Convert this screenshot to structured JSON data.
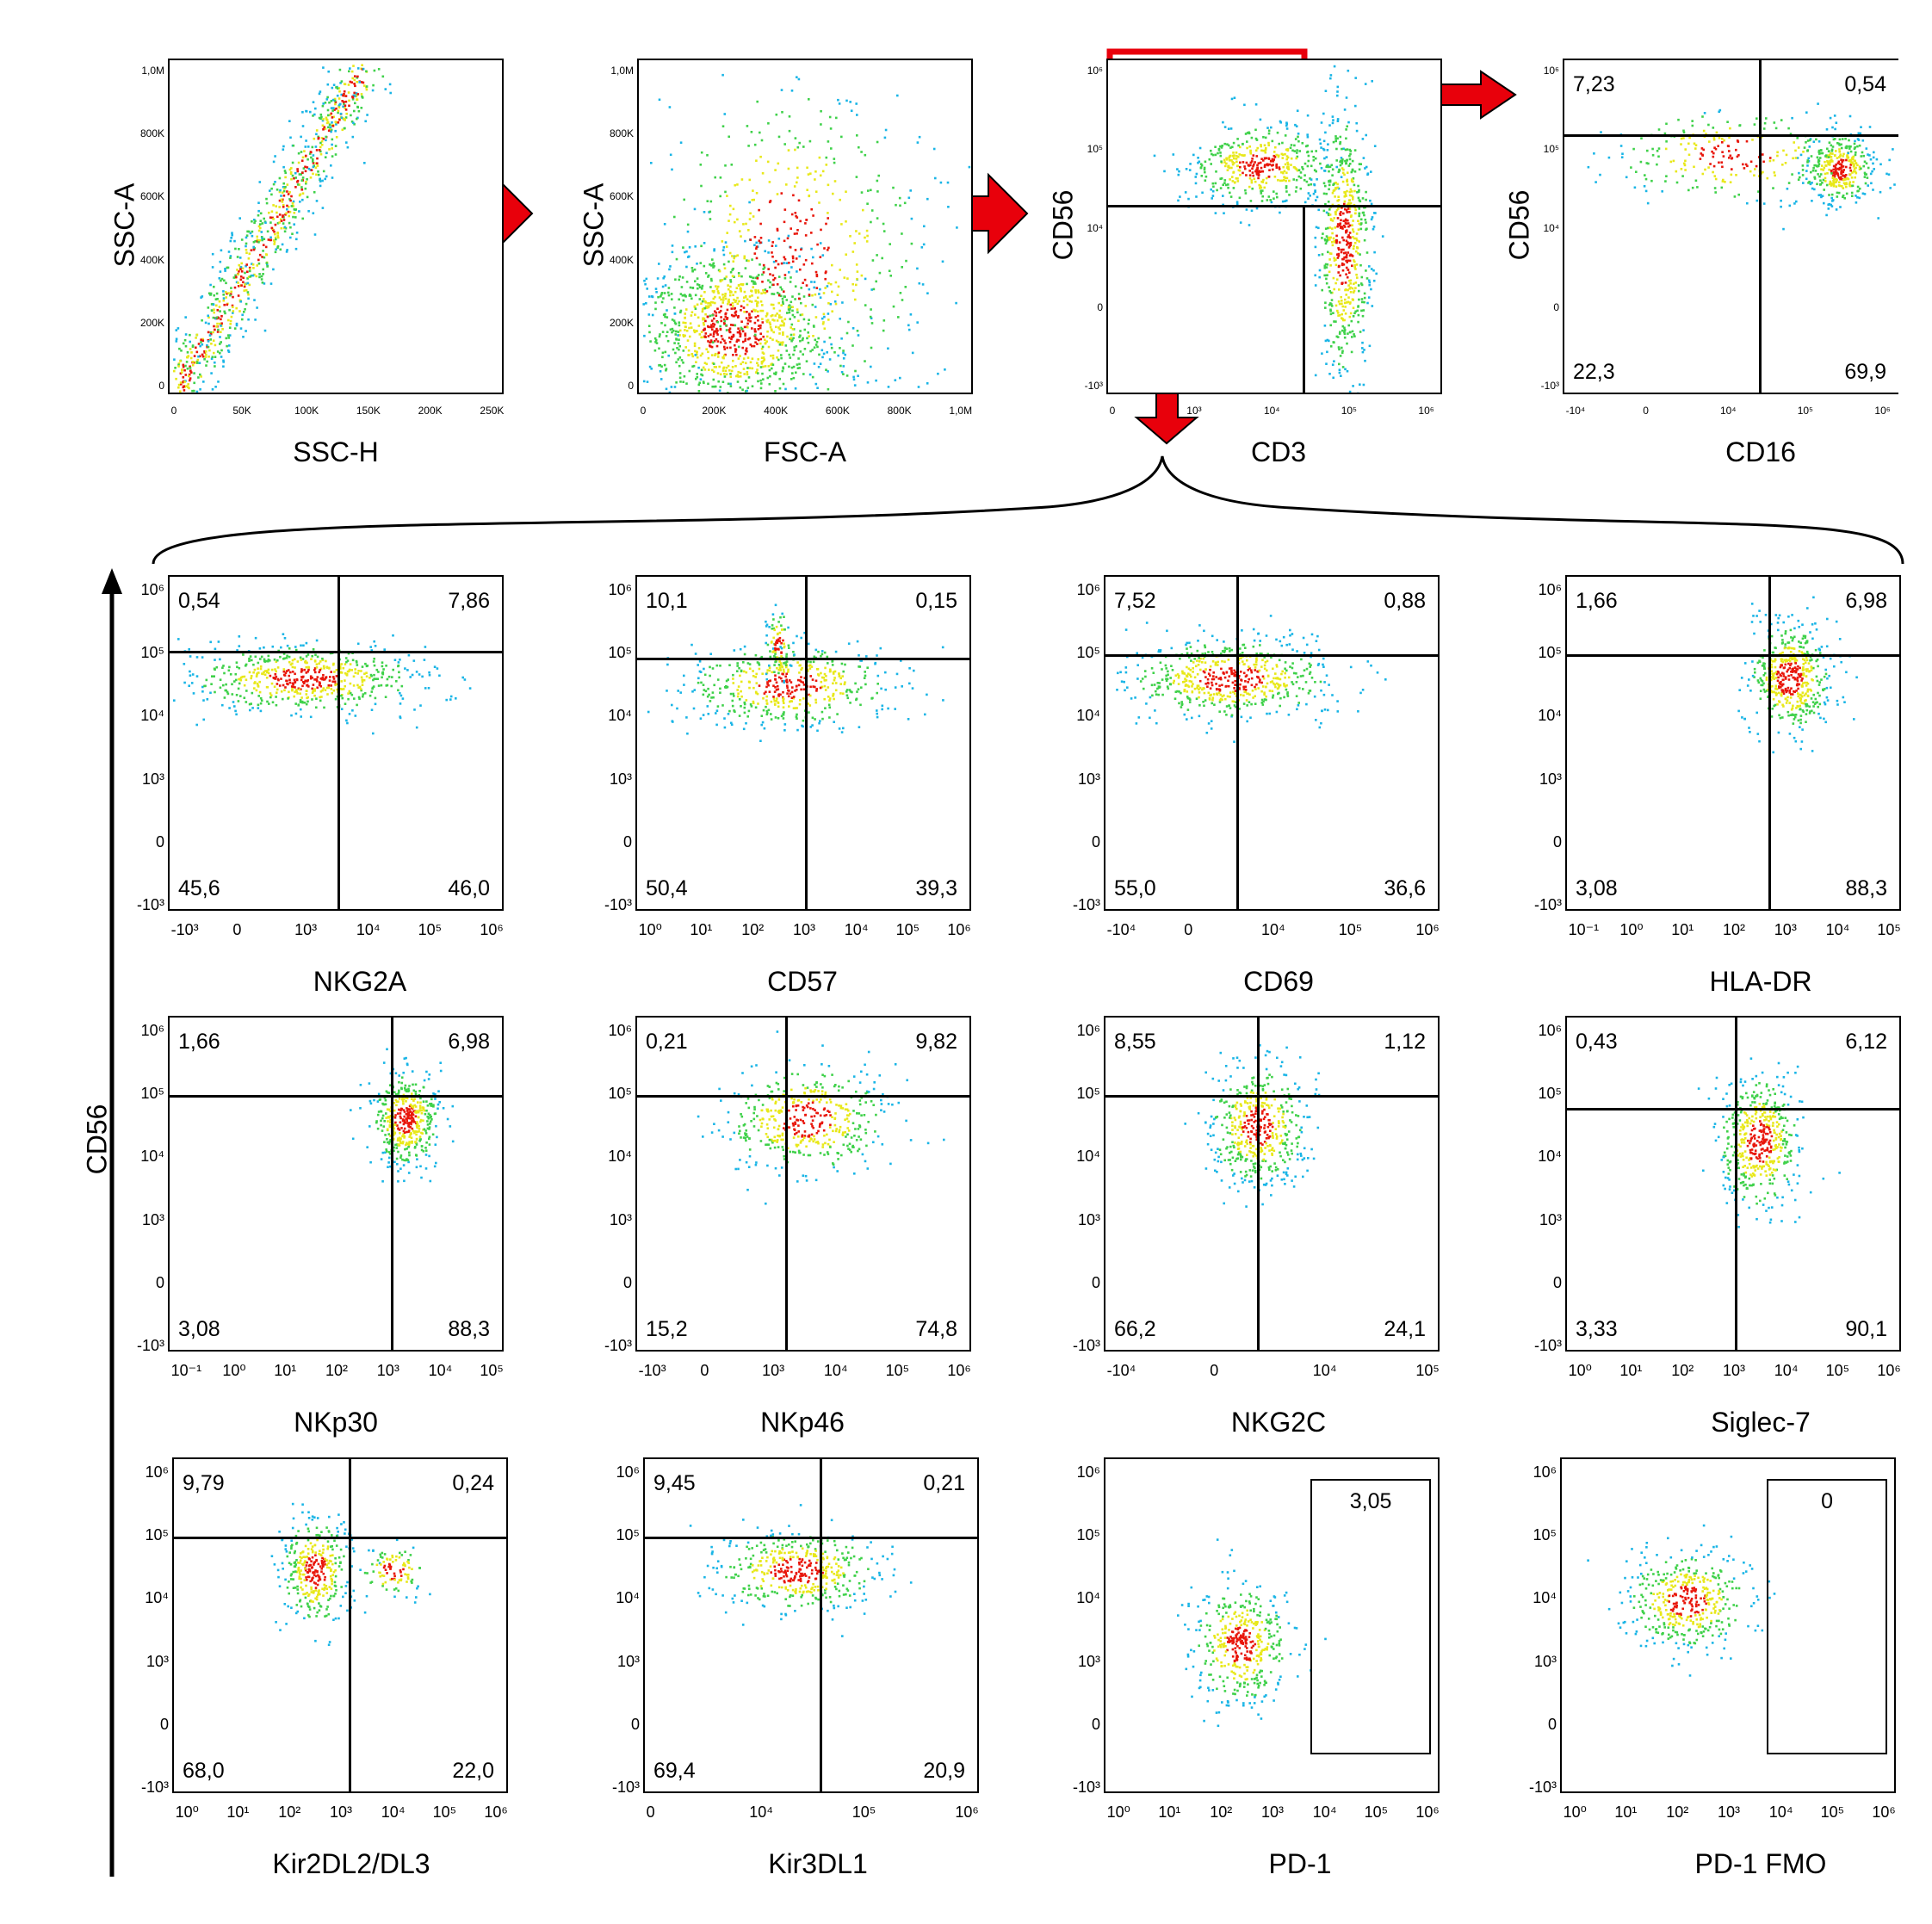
{
  "figure": {
    "colors": {
      "arrow": "#e8000b",
      "gate_red": "#e8000b",
      "axis": "#000000"
    },
    "left_axis_label": "CD56",
    "brace_label": ""
  },
  "chart_data": [
    {
      "id": "p1",
      "type": "scatter",
      "xlabel": "SSC-H",
      "ylabel": "SSC-A",
      "population": "singlet-gate",
      "xticks": [
        "0",
        "50K",
        "100K",
        "150K",
        "200K",
        "250K"
      ],
      "yticks": [
        "0",
        "200K",
        "400K",
        "600K",
        "800K",
        "1,0M"
      ]
    },
    {
      "id": "p2",
      "type": "scatter",
      "xlabel": "FSC-A",
      "ylabel": "SSC-A",
      "population": "lymphocyte-gate",
      "xticks": [
        "0",
        "200K",
        "400K",
        "600K",
        "800K",
        "1,0M"
      ],
      "yticks": [
        "0",
        "200K",
        "400K",
        "600K",
        "800K",
        "1,0M"
      ]
    },
    {
      "id": "p3",
      "type": "scatter",
      "xlabel": "CD3",
      "ylabel": "CD56",
      "population": "cd3-cd56",
      "xticks": [
        "0",
        "10³",
        "10⁴",
        "10⁵",
        "10⁶"
      ],
      "yticks": [
        "-10³",
        "0",
        "10⁴",
        "10⁵",
        "10⁶"
      ]
    },
    {
      "id": "p4",
      "type": "scatter",
      "xlabel": "CD16",
      "ylabel": "CD56",
      "quadrants": {
        "ul": "7,23",
        "ur": "0,54",
        "ll": "22,3",
        "lr": "69,9"
      },
      "xticks": [
        "-10⁴",
        "0",
        "10⁴",
        "10⁵",
        "10⁶"
      ],
      "yticks": [
        "-10³",
        "0",
        "10⁴",
        "10⁵",
        "10⁶"
      ]
    },
    {
      "id": "nkg2a",
      "type": "scatter",
      "xlabel": "NKG2A",
      "quadrants": {
        "ul": "0,54",
        "ur": "7,86",
        "ll": "45,6",
        "lr": "46,0"
      },
      "xticks": [
        "-10³",
        "0",
        "10³",
        "10⁴",
        "10⁵",
        "10⁶"
      ],
      "yticks": [
        "-10³",
        "0",
        "10³",
        "10⁴",
        "10⁵",
        "10⁶"
      ]
    },
    {
      "id": "cd57",
      "type": "scatter",
      "xlabel": "CD57",
      "quadrants": {
        "ul": "10,1",
        "ur": "0,15",
        "ll": "50,4",
        "lr": "39,3"
      },
      "xticks": [
        "10⁰",
        "10¹",
        "10²",
        "10³",
        "10⁴",
        "10⁵",
        "10⁶"
      ],
      "yticks": [
        "-10³",
        "0",
        "10³",
        "10⁴",
        "10⁵",
        "10⁶"
      ]
    },
    {
      "id": "cd69",
      "type": "scatter",
      "xlabel": "CD69",
      "quadrants": {
        "ul": "7,52",
        "ur": "0,88",
        "ll": "55,0",
        "lr": "36,6"
      },
      "xticks": [
        "-10⁴",
        "0",
        "10⁴",
        "10⁵",
        "10⁶"
      ],
      "yticks": [
        "-10³",
        "0",
        "10³",
        "10⁴",
        "10⁵",
        "10⁶"
      ]
    },
    {
      "id": "hladr",
      "type": "scatter",
      "xlabel": "HLA-DR",
      "quadrants": {
        "ul": "1,66",
        "ur": "6,98",
        "ll": "3,08",
        "lr": "88,3"
      },
      "xticks": [
        "10⁻¹",
        "10⁰",
        "10¹",
        "10²",
        "10³",
        "10⁴",
        "10⁵"
      ],
      "yticks": [
        "-10³",
        "0",
        "10³",
        "10⁴",
        "10⁵",
        "10⁶"
      ]
    },
    {
      "id": "nkp30",
      "type": "scatter",
      "xlabel": "NKp30",
      "quadrants": {
        "ul": "1,66",
        "ur": "6,98",
        "ll": "3,08",
        "lr": "88,3"
      },
      "xticks": [
        "10⁻¹",
        "10⁰",
        "10¹",
        "10²",
        "10³",
        "10⁴",
        "10⁵"
      ],
      "yticks": [
        "-10³",
        "0",
        "10³",
        "10⁴",
        "10⁵",
        "10⁶"
      ]
    },
    {
      "id": "nkp46",
      "type": "scatter",
      "xlabel": "NKp46",
      "quadrants": {
        "ul": "0,21",
        "ur": "9,82",
        "ll": "15,2",
        "lr": "74,8"
      },
      "xticks": [
        "-10³",
        "0",
        "10³",
        "10⁴",
        "10⁵",
        "10⁶"
      ],
      "yticks": [
        "-10³",
        "0",
        "10³",
        "10⁴",
        "10⁵",
        "10⁶"
      ]
    },
    {
      "id": "nkg2c",
      "type": "scatter",
      "xlabel": "NKG2C",
      "quadrants": {
        "ul": "8,55",
        "ur": "1,12",
        "ll": "66,2",
        "lr": "24,1"
      },
      "xticks": [
        "-10⁴",
        "0",
        "10⁴",
        "10⁵"
      ],
      "yticks": [
        "-10³",
        "0",
        "10³",
        "10⁴",
        "10⁵",
        "10⁶"
      ]
    },
    {
      "id": "siglec7",
      "type": "scatter",
      "xlabel": "Siglec-7",
      "quadrants": {
        "ul": "0,43",
        "ur": "6,12",
        "ll": "3,33",
        "lr": "90,1"
      },
      "xticks": [
        "10⁰",
        "10¹",
        "10²",
        "10³",
        "10⁴",
        "10⁵",
        "10⁶"
      ],
      "yticks": [
        "-10³",
        "0",
        "10³",
        "10⁴",
        "10⁵",
        "10⁶"
      ]
    },
    {
      "id": "kir2dl",
      "type": "scatter",
      "xlabel": "Kir2DL2/DL3",
      "quadrants": {
        "ul": "9,79",
        "ur": "0,24",
        "ll": "68,0",
        "lr": "22,0"
      },
      "xticks": [
        "10⁰",
        "10¹",
        "10²",
        "10³",
        "10⁴",
        "10⁵",
        "10⁶"
      ],
      "yticks": [
        "-10³",
        "0",
        "10³",
        "10⁴",
        "10⁵",
        "10⁶"
      ]
    },
    {
      "id": "kir3dl1",
      "type": "scatter",
      "xlabel": "Kir3DL1",
      "quadrants": {
        "ul": "9,45",
        "ur": "0,21",
        "ll": "69,4",
        "lr": "20,9"
      },
      "xticks": [
        "0",
        "10⁴",
        "10⁵",
        "10⁶"
      ],
      "yticks": [
        "-10³",
        "0",
        "10³",
        "10⁴",
        "10⁵",
        "10⁶"
      ]
    },
    {
      "id": "pd1",
      "type": "scatter",
      "xlabel": "PD-1",
      "gate_value": "3,05",
      "xticks": [
        "10⁰",
        "10¹",
        "10²",
        "10³",
        "10⁴",
        "10⁵",
        "10⁶"
      ],
      "yticks": [
        "-10³",
        "0",
        "10³",
        "10⁴",
        "10⁵",
        "10⁶"
      ]
    },
    {
      "id": "pd1fmo",
      "type": "scatter",
      "xlabel": "PD-1 FMO",
      "gate_value": "0",
      "xticks": [
        "10⁰",
        "10¹",
        "10²",
        "10³",
        "10⁴",
        "10⁵",
        "10⁶"
      ],
      "yticks": [
        "-10³",
        "0",
        "10³",
        "10⁴",
        "10⁵",
        "10⁶"
      ]
    }
  ]
}
